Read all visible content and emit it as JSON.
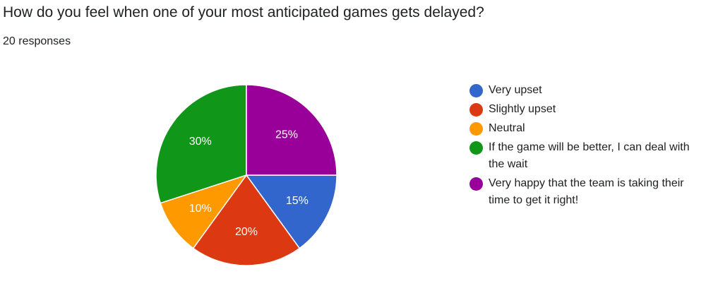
{
  "question": {
    "title": "How do you feel when one of your most anticipated games gets delayed?",
    "responses": "20 responses"
  },
  "chart_data": {
    "type": "pie",
    "slices": [
      {
        "label": "Very upset",
        "value": 15,
        "display": "15%",
        "color": "#3366cc"
      },
      {
        "label": "Slightly upset",
        "value": 20,
        "display": "20%",
        "color": "#dc3912"
      },
      {
        "label": "Neutral",
        "value": 10,
        "display": "10%",
        "color": "#ff9900"
      },
      {
        "label": "If the game will be better, I can deal with the wait",
        "value": 30,
        "display": "30%",
        "color": "#109618"
      },
      {
        "label": "Very happy that the team is taking their time to get it right!",
        "value": 25,
        "display": "25%",
        "color": "#990099"
      }
    ],
    "legend_position": "right"
  }
}
